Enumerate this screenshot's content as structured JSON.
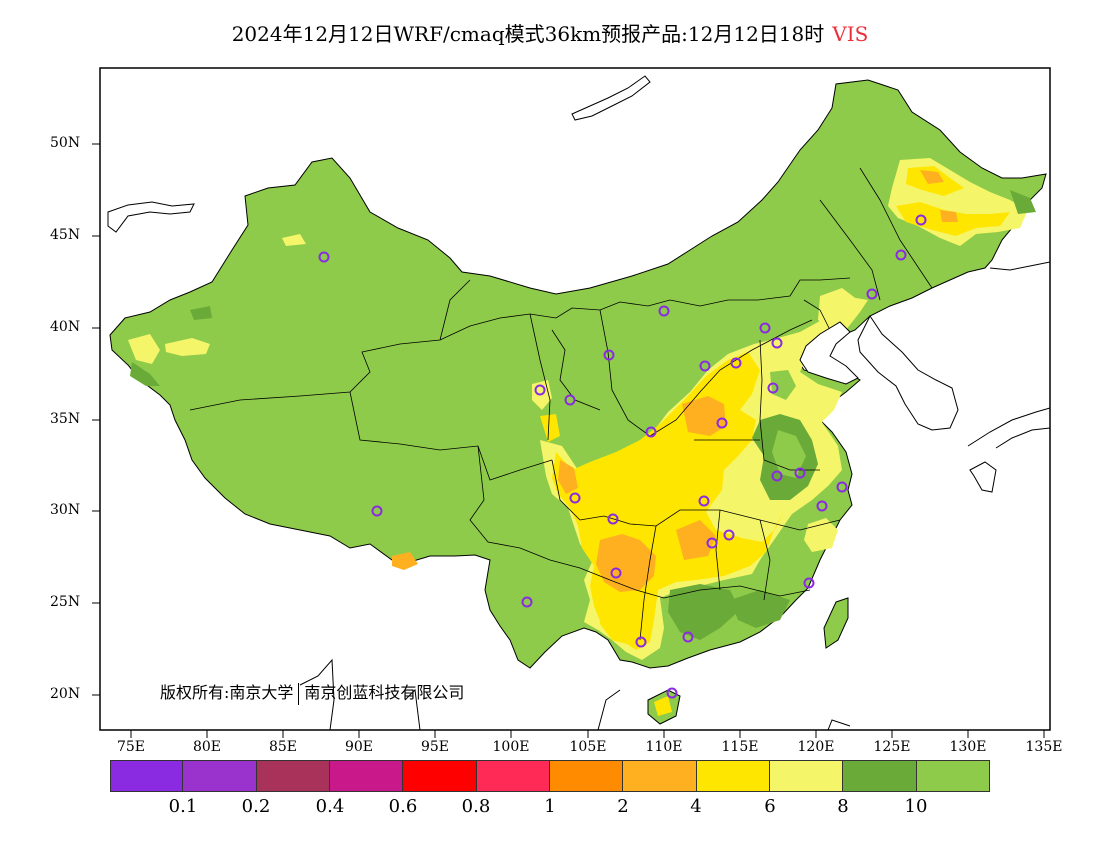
{
  "title": {
    "main": "2024年12月12日WRF/cmaq模式36km预报产品:12月12日18时",
    "variable": "VIS"
  },
  "axes": {
    "lat_labels": [
      "50N",
      "45N",
      "40N",
      "35N",
      "30N",
      "25N",
      "20N"
    ],
    "lon_labels": [
      "75E",
      "80E",
      "85E",
      "90E",
      "95E",
      "100E",
      "105E",
      "110E",
      "115E",
      "120E",
      "125E",
      "130E",
      "135E"
    ]
  },
  "copyright": {
    "prefix": "版权所有:",
    "org1": "南京大学",
    "org2": "南京创蓝科技有限公司"
  },
  "legend": {
    "colors": [
      "#8a2be2",
      "#9a32cd",
      "#a8325a",
      "#c8188a",
      "#ff0000",
      "#ff2a55",
      "#ff8c00",
      "#ffb020",
      "#ffe600",
      "#f5f56a",
      "#6aaa38",
      "#8ecb4a"
    ],
    "values": [
      "0.1",
      "0.2",
      "0.4",
      "0.6",
      "0.8",
      "1",
      "2",
      "4",
      "6",
      "8",
      "10"
    ]
  },
  "map_colors": {
    "land_default": "#8ecb4a",
    "border": "#000000",
    "station_marker": "#8a2be2"
  }
}
